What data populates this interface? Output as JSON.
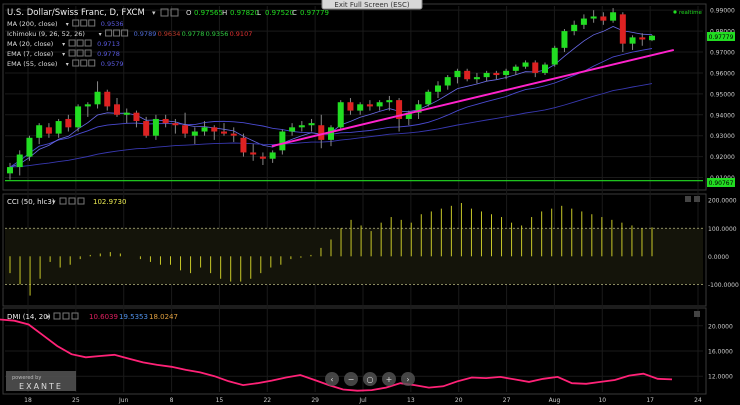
{
  "top_bar": {
    "exit_label": "Exit Full Screen (ESC)"
  },
  "price_panel": {
    "symbol": "U.S. Dollar/Swiss Franc, D, FXCM",
    "realtime_label": "realtime",
    "ohlc": [
      {
        "k": "O",
        "v": "0.97565"
      },
      {
        "k": "H",
        "v": "0.97820"
      },
      {
        "k": "L",
        "v": "0.97520"
      },
      {
        "k": "C",
        "v": "0.97779"
      }
    ],
    "legend": [
      {
        "name": "MA (200, close)",
        "values": [
          {
            "t": "0.9536",
            "c": "#5a5adf"
          }
        ]
      },
      {
        "name": "Ichimoku (9, 26, 52, 26)",
        "values": [
          {
            "t": "0.9789",
            "c": "#4f6bd6"
          },
          {
            "t": "0.9634",
            "c": "#c0392b"
          },
          {
            "t": "0.9778",
            "c": "#2ecc40"
          },
          {
            "t": "0.9356",
            "c": "#2ecc40"
          },
          {
            "t": "0.9107",
            "c": "#e03030"
          }
        ]
      },
      {
        "name": "MA (20, close)",
        "values": [
          {
            "t": "0.9713",
            "c": "#5a5adf"
          }
        ]
      },
      {
        "name": "EMA (7, close)",
        "values": [
          {
            "t": "0.9778",
            "c": "#5a5adf"
          }
        ]
      },
      {
        "name": "EMA (55, close)",
        "values": [
          {
            "t": "0.9579",
            "c": "#5a5adf"
          }
        ]
      }
    ],
    "axis": [
      "0.99000",
      "0.98000",
      "0.97000",
      "0.96000",
      "0.95000",
      "0.94000",
      "0.93000",
      "0.92000",
      "0.91000"
    ],
    "last_price_tag": "0.97779",
    "support_tag": "0.90767"
  },
  "cci_panel": {
    "label": "CCI (50, hlc3)",
    "value": "102.9730",
    "axis": [
      "200.0000",
      "100.0000",
      "0.0000",
      "-100.0000"
    ]
  },
  "dmi_panel": {
    "label": "DMI (14, 20)",
    "values": [
      {
        "t": "10.6039",
        "c": "#e02060"
      },
      {
        "t": "19.5353",
        "c": "#4f8fe6"
      },
      {
        "t": "18.0247",
        "c": "#e0a040"
      }
    ],
    "axis": [
      "20.0000",
      "16.0000",
      "12.0000"
    ]
  },
  "x_axis": [
    "18",
    "25",
    "Jun",
    "8",
    "15",
    "22",
    "29",
    "Jul",
    "13",
    "20",
    "27",
    "Aug",
    "10",
    "17",
    "24"
  ],
  "watermark": {
    "line1": "powered by",
    "line2": "EXANTE"
  },
  "colors": {
    "bull": "#22dd22",
    "bear": "#dd2222",
    "trend": "#ff22cc",
    "cci": "#c8c828",
    "dmi": "#ff2277",
    "grid": "#1a1a1a",
    "axis_text": "#cccccc"
  },
  "chart_data": [
    {
      "type": "candlestick",
      "title": "U.S. Dollar/Swiss Franc, D, FXCM",
      "ylim": [
        0.905,
        0.992
      ],
      "x": [
        "18",
        "25",
        "Jun",
        "8",
        "15",
        "22",
        "29",
        "Jul",
        "13",
        "20",
        "27",
        "Aug",
        "10",
        "17",
        "24"
      ],
      "candles": [
        [
          0.912,
          0.917,
          0.909,
          0.915
        ],
        [
          0.915,
          0.923,
          0.911,
          0.921
        ],
        [
          0.92,
          0.93,
          0.918,
          0.929
        ],
        [
          0.929,
          0.936,
          0.926,
          0.935
        ],
        [
          0.934,
          0.936,
          0.929,
          0.931
        ],
        [
          0.931,
          0.938,
          0.929,
          0.937
        ],
        [
          0.938,
          0.94,
          0.932,
          0.934
        ],
        [
          0.934,
          0.945,
          0.932,
          0.944
        ],
        [
          0.944,
          0.946,
          0.939,
          0.945
        ],
        [
          0.945,
          0.956,
          0.943,
          0.951
        ],
        [
          0.951,
          0.952,
          0.942,
          0.944
        ],
        [
          0.945,
          0.948,
          0.939,
          0.94
        ],
        [
          0.94,
          0.943,
          0.936,
          0.941
        ],
        [
          0.941,
          0.942,
          0.934,
          0.937
        ],
        [
          0.937,
          0.939,
          0.929,
          0.93
        ],
        [
          0.93,
          0.94,
          0.928,
          0.938
        ],
        [
          0.938,
          0.94,
          0.934,
          0.936
        ],
        [
          0.936,
          0.938,
          0.931,
          0.935
        ],
        [
          0.935,
          0.941,
          0.929,
          0.931
        ],
        [
          0.93,
          0.934,
          0.926,
          0.932
        ],
        [
          0.932,
          0.937,
          0.93,
          0.934
        ],
        [
          0.934,
          0.935,
          0.928,
          0.932
        ],
        [
          0.932,
          0.936,
          0.93,
          0.931
        ],
        [
          0.931,
          0.934,
          0.927,
          0.93
        ],
        [
          0.929,
          0.931,
          0.92,
          0.922
        ],
        [
          0.922,
          0.926,
          0.918,
          0.921
        ],
        [
          0.92,
          0.922,
          0.916,
          0.919
        ],
        [
          0.919,
          0.923,
          0.917,
          0.922
        ],
        [
          0.923,
          0.933,
          0.921,
          0.932
        ],
        [
          0.932,
          0.936,
          0.93,
          0.934
        ],
        [
          0.934,
          0.937,
          0.932,
          0.935
        ],
        [
          0.935,
          0.938,
          0.932,
          0.936
        ],
        [
          0.935,
          0.94,
          0.924,
          0.928
        ],
        [
          0.928,
          0.935,
          0.925,
          0.934
        ],
        [
          0.934,
          0.947,
          0.933,
          0.946
        ],
        [
          0.946,
          0.948,
          0.94,
          0.942
        ],
        [
          0.942,
          0.946,
          0.94,
          0.945
        ],
        [
          0.945,
          0.947,
          0.942,
          0.944
        ],
        [
          0.944,
          0.947,
          0.942,
          0.946
        ],
        [
          0.946,
          0.949,
          0.942,
          0.947
        ],
        [
          0.947,
          0.948,
          0.932,
          0.938
        ],
        [
          0.938,
          0.942,
          0.935,
          0.941
        ],
        [
          0.941,
          0.947,
          0.938,
          0.945
        ],
        [
          0.945,
          0.952,
          0.944,
          0.951
        ],
        [
          0.951,
          0.956,
          0.948,
          0.954
        ],
        [
          0.954,
          0.959,
          0.952,
          0.958
        ],
        [
          0.958,
          0.962,
          0.955,
          0.961
        ],
        [
          0.961,
          0.962,
          0.956,
          0.957
        ],
        [
          0.957,
          0.96,
          0.955,
          0.958
        ],
        [
          0.958,
          0.961,
          0.956,
          0.96
        ],
        [
          0.96,
          0.961,
          0.957,
          0.959
        ],
        [
          0.959,
          0.962,
          0.957,
          0.961
        ],
        [
          0.961,
          0.964,
          0.959,
          0.963
        ],
        [
          0.963,
          0.966,
          0.962,
          0.965
        ],
        [
          0.965,
          0.966,
          0.958,
          0.96
        ],
        [
          0.96,
          0.965,
          0.959,
          0.964
        ],
        [
          0.964,
          0.973,
          0.963,
          0.972
        ],
        [
          0.972,
          0.981,
          0.97,
          0.98
        ],
        [
          0.98,
          0.985,
          0.978,
          0.983
        ],
        [
          0.983,
          0.988,
          0.981,
          0.986
        ],
        [
          0.986,
          0.99,
          0.984,
          0.987
        ],
        [
          0.987,
          0.989,
          0.983,
          0.985
        ],
        [
          0.985,
          0.991,
          0.984,
          0.989
        ],
        [
          0.988,
          0.989,
          0.97,
          0.974
        ],
        [
          0.974,
          0.978,
          0.971,
          0.977
        ],
        [
          0.977,
          0.979,
          0.973,
          0.976
        ],
        [
          0.97565,
          0.9782,
          0.9752,
          0.97779
        ]
      ],
      "trendlines": [
        {
          "name": "support",
          "points": [
            [
              0.855,
              0.925
            ],
            [
              0.9725,
              0.971
            ]
          ]
        },
        {
          "name": "level",
          "points": [
            [
              0.0,
              0.9085
            ],
            [
              1.0,
              0.9085
            ]
          ]
        }
      ]
    },
    {
      "type": "bar",
      "title": "CCI (50, hlc3)",
      "ylim": [
        -170,
        215
      ],
      "values": [
        -60,
        -100,
        -140,
        -80,
        -20,
        -40,
        -30,
        -10,
        5,
        10,
        15,
        10,
        0,
        -10,
        -20,
        -30,
        -30,
        -50,
        -60,
        -40,
        -60,
        -80,
        -90,
        -90,
        -80,
        -60,
        -40,
        -30,
        -10,
        -5,
        5,
        30,
        60,
        100,
        130,
        110,
        90,
        120,
        140,
        130,
        120,
        150,
        160,
        170,
        180,
        190,
        170,
        160,
        150,
        140,
        120,
        110,
        140,
        160,
        170,
        180,
        170,
        160,
        150,
        140,
        130,
        120,
        110,
        100,
        103
      ]
    },
    {
      "type": "line",
      "title": "DMI (14, 20)",
      "ylim": [
        9.5,
        22.5
      ],
      "series": [
        {
          "values": [
            21.0,
            20.8,
            20.2,
            18.5,
            16.8,
            15.5,
            15.0,
            15.2,
            15.4,
            14.8,
            14.2,
            13.8,
            13.5,
            13.0,
            12.6,
            12.0,
            11.2,
            10.6,
            10.9,
            11.3,
            11.8,
            12.2,
            11.4,
            10.6,
            9.9,
            9.7,
            9.8,
            10.2,
            10.9,
            10.6,
            10.2,
            10.4,
            11.2,
            11.8,
            11.7,
            11.9,
            11.5,
            11.1,
            11.6,
            11.9,
            10.9,
            10.8,
            11.1,
            11.4,
            12.1,
            12.4,
            11.6,
            11.5
          ]
        }
      ]
    }
  ]
}
